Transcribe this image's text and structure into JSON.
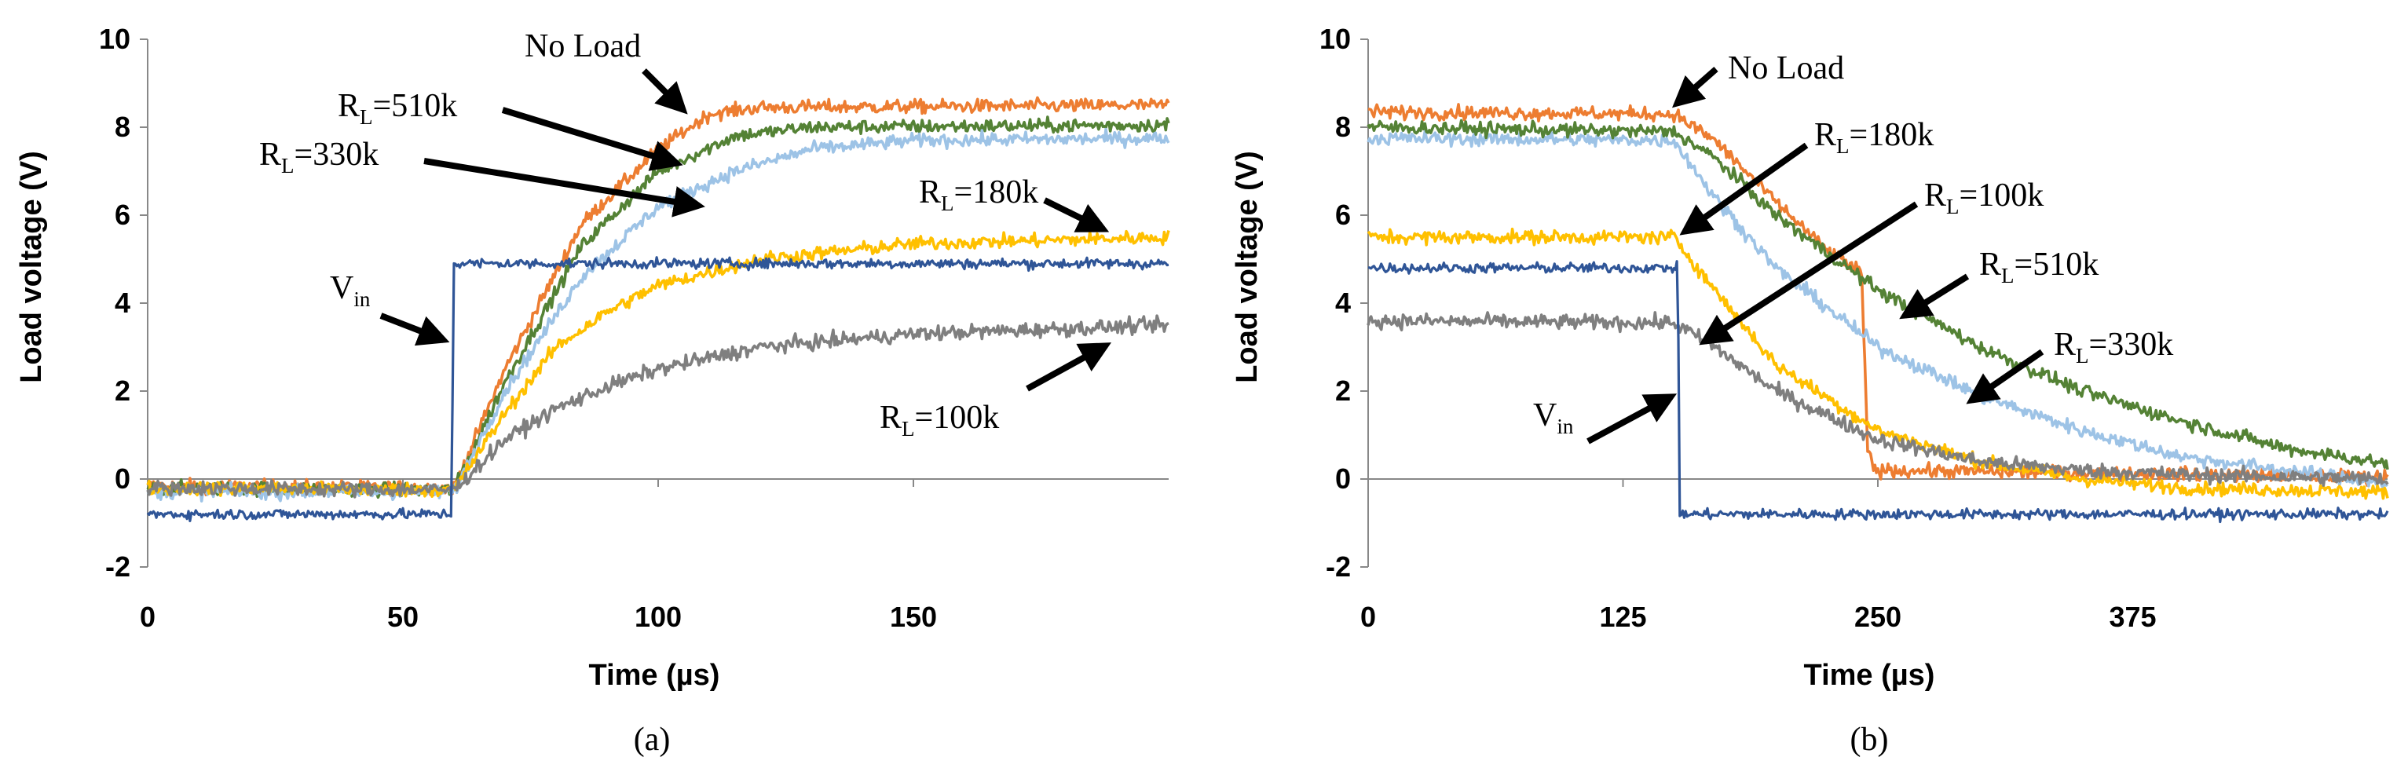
{
  "chart_data": [
    {
      "type": "line",
      "caption": "(a)",
      "xlabel": "Time (µs)",
      "ylabel": "Load voltage (V)",
      "xlim": [
        0,
        200
      ],
      "ylim": [
        -2,
        10
      ],
      "xticks": [
        0,
        50,
        100,
        150
      ],
      "xtick_labels": [
        "0",
        "50",
        "100",
        "150"
      ],
      "yticks": [
        -2,
        0,
        2,
        4,
        6,
        8,
        10
      ],
      "ytick_labels": [
        "-2",
        "0",
        "2",
        "4",
        "6",
        "8",
        "10"
      ],
      "series": [
        {
          "name": "No Load",
          "color": "#ED7D31",
          "noise": 0.12,
          "points": [
            [
              0,
              -0.15
            ],
            [
              60,
              -0.2
            ],
            [
              70,
              2.5
            ],
            [
              85,
              5.8
            ],
            [
              100,
              7.5
            ],
            [
              110,
              8.3
            ],
            [
              120,
              8.45
            ],
            [
              200,
              8.5
            ]
          ]
        },
        {
          "name": "RL=510k",
          "color": "#548235",
          "noise": 0.12,
          "points": [
            [
              0,
              -0.2
            ],
            [
              60,
              -0.25
            ],
            [
              70,
              2.2
            ],
            [
              85,
              5.3
            ],
            [
              100,
              7.0
            ],
            [
              115,
              7.8
            ],
            [
              130,
              8.0
            ],
            [
              200,
              8.05
            ]
          ]
        },
        {
          "name": "RL=330k",
          "color": "#9DC3E6",
          "noise": 0.12,
          "points": [
            [
              0,
              -0.3
            ],
            [
              60,
              -0.3
            ],
            [
              70,
              2.0
            ],
            [
              85,
              4.6
            ],
            [
              100,
              6.2
            ],
            [
              115,
              7.0
            ],
            [
              130,
              7.5
            ],
            [
              150,
              7.7
            ],
            [
              200,
              7.75
            ]
          ]
        },
        {
          "name": "RL=180k",
          "color": "#FFC000",
          "noise": 0.12,
          "points": [
            [
              0,
              -0.2
            ],
            [
              60,
              -0.25
            ],
            [
              70,
              1.5
            ],
            [
              80,
              3.0
            ],
            [
              90,
              3.8
            ],
            [
              100,
              4.4
            ],
            [
              120,
              5.0
            ],
            [
              150,
              5.35
            ],
            [
              200,
              5.5
            ]
          ]
        },
        {
          "name": "RL=100k",
          "color": "#7F7F7F",
          "noise": 0.13,
          "points": [
            [
              0,
              -0.2
            ],
            [
              60,
              -0.25
            ],
            [
              70,
              0.9
            ],
            [
              80,
              1.6
            ],
            [
              90,
              2.1
            ],
            [
              100,
              2.5
            ],
            [
              120,
              3.0
            ],
            [
              150,
              3.3
            ],
            [
              200,
              3.5
            ]
          ]
        },
        {
          "name": "Vin",
          "color": "#2F5597",
          "noise": 0.09,
          "points": [
            [
              0,
              -0.8
            ],
            [
              59.5,
              -0.8
            ],
            [
              60,
              4.9
            ],
            [
              200,
              4.9
            ]
          ]
        }
      ],
      "annotations": [
        {
          "main": "No Load",
          "sub": ""
        },
        {
          "main": "R",
          "sub": "L",
          "tail": "=510k"
        },
        {
          "main": "R",
          "sub": "L",
          "tail": "=330k"
        },
        {
          "main": "R",
          "sub": "L",
          "tail": "=180k"
        },
        {
          "main": "R",
          "sub": "L",
          "tail": "=100k"
        },
        {
          "main": "V",
          "sub": "in",
          "tail": ""
        }
      ]
    },
    {
      "type": "line",
      "caption": "(b)",
      "xlabel": "Time (µs)",
      "ylabel": "Load voltage (V)",
      "xlim": [
        0,
        500
      ],
      "ylim": [
        -2,
        10
      ],
      "xticks": [
        0,
        125,
        250,
        375
      ],
      "xtick_labels": [
        "0",
        "125",
        "250",
        "375"
      ],
      "yticks": [
        -2,
        0,
        2,
        4,
        6,
        8,
        10
      ],
      "ytick_labels": [
        "-2",
        "0",
        "2",
        "4",
        "6",
        "8",
        "10"
      ],
      "series": [
        {
          "name": "No Load",
          "color": "#ED7D31",
          "noise": 0.12,
          "points": [
            [
              0,
              8.35
            ],
            [
              150,
              8.3
            ],
            [
              170,
              7.7
            ],
            [
              200,
              6.3
            ],
            [
              225,
              5.2
            ],
            [
              242,
              4.7
            ],
            [
              245,
              0.7
            ],
            [
              248,
              0.2
            ],
            [
              500,
              0.05
            ]
          ]
        },
        {
          "name": "RL=330k",
          "color": "#9DC3E6",
          "noise": 0.12,
          "points": [
            [
              0,
              7.75
            ],
            [
              150,
              7.7
            ],
            [
              170,
              6.4
            ],
            [
              200,
              4.8
            ],
            [
              250,
              3.0
            ],
            [
              300,
              1.9
            ],
            [
              350,
              1.1
            ],
            [
              400,
              0.5
            ],
            [
              450,
              0.2
            ],
            [
              500,
              -0.1
            ]
          ]
        },
        {
          "name": "RL=510k",
          "color": "#548235",
          "noise": 0.12,
          "points": [
            [
              0,
              8.0
            ],
            [
              150,
              7.9
            ],
            [
              170,
              7.3
            ],
            [
              200,
              6.0
            ],
            [
              250,
              4.3
            ],
            [
              300,
              3.0
            ],
            [
              350,
              2.0
            ],
            [
              400,
              1.3
            ],
            [
              450,
              0.7
            ],
            [
              500,
              0.35
            ]
          ]
        },
        {
          "name": "RL=180k",
          "color": "#FFC000",
          "noise": 0.12,
          "points": [
            [
              0,
              5.5
            ],
            [
              150,
              5.5
            ],
            [
              170,
              4.3
            ],
            [
              200,
              2.6
            ],
            [
              250,
              1.1
            ],
            [
              300,
              0.4
            ],
            [
              350,
              0.0
            ],
            [
              400,
              -0.2
            ],
            [
              500,
              -0.3
            ]
          ]
        },
        {
          "name": "RL=100k",
          "color": "#7F7F7F",
          "noise": 0.13,
          "points": [
            [
              0,
              3.6
            ],
            [
              150,
              3.55
            ],
            [
              170,
              3.0
            ],
            [
              200,
              2.0
            ],
            [
              250,
              0.9
            ],
            [
              300,
              0.4
            ],
            [
              350,
              0.2
            ],
            [
              400,
              0.1
            ],
            [
              500,
              0.0
            ]
          ]
        },
        {
          "name": "Vin",
          "color": "#2F5597",
          "noise": 0.09,
          "points": [
            [
              0,
              4.8
            ],
            [
              152,
              4.8
            ],
            [
              152.5,
              -0.8
            ],
            [
              500,
              -0.8
            ]
          ]
        }
      ],
      "annotations": [
        {
          "main": "No Load",
          "sub": ""
        },
        {
          "main": "R",
          "sub": "L",
          "tail": "=180k"
        },
        {
          "main": "R",
          "sub": "L",
          "tail": "=100k"
        },
        {
          "main": "R",
          "sub": "L",
          "tail": "=510k"
        },
        {
          "main": "R",
          "sub": "L",
          "tail": "=330k"
        },
        {
          "main": "V",
          "sub": "in",
          "tail": ""
        }
      ]
    }
  ]
}
